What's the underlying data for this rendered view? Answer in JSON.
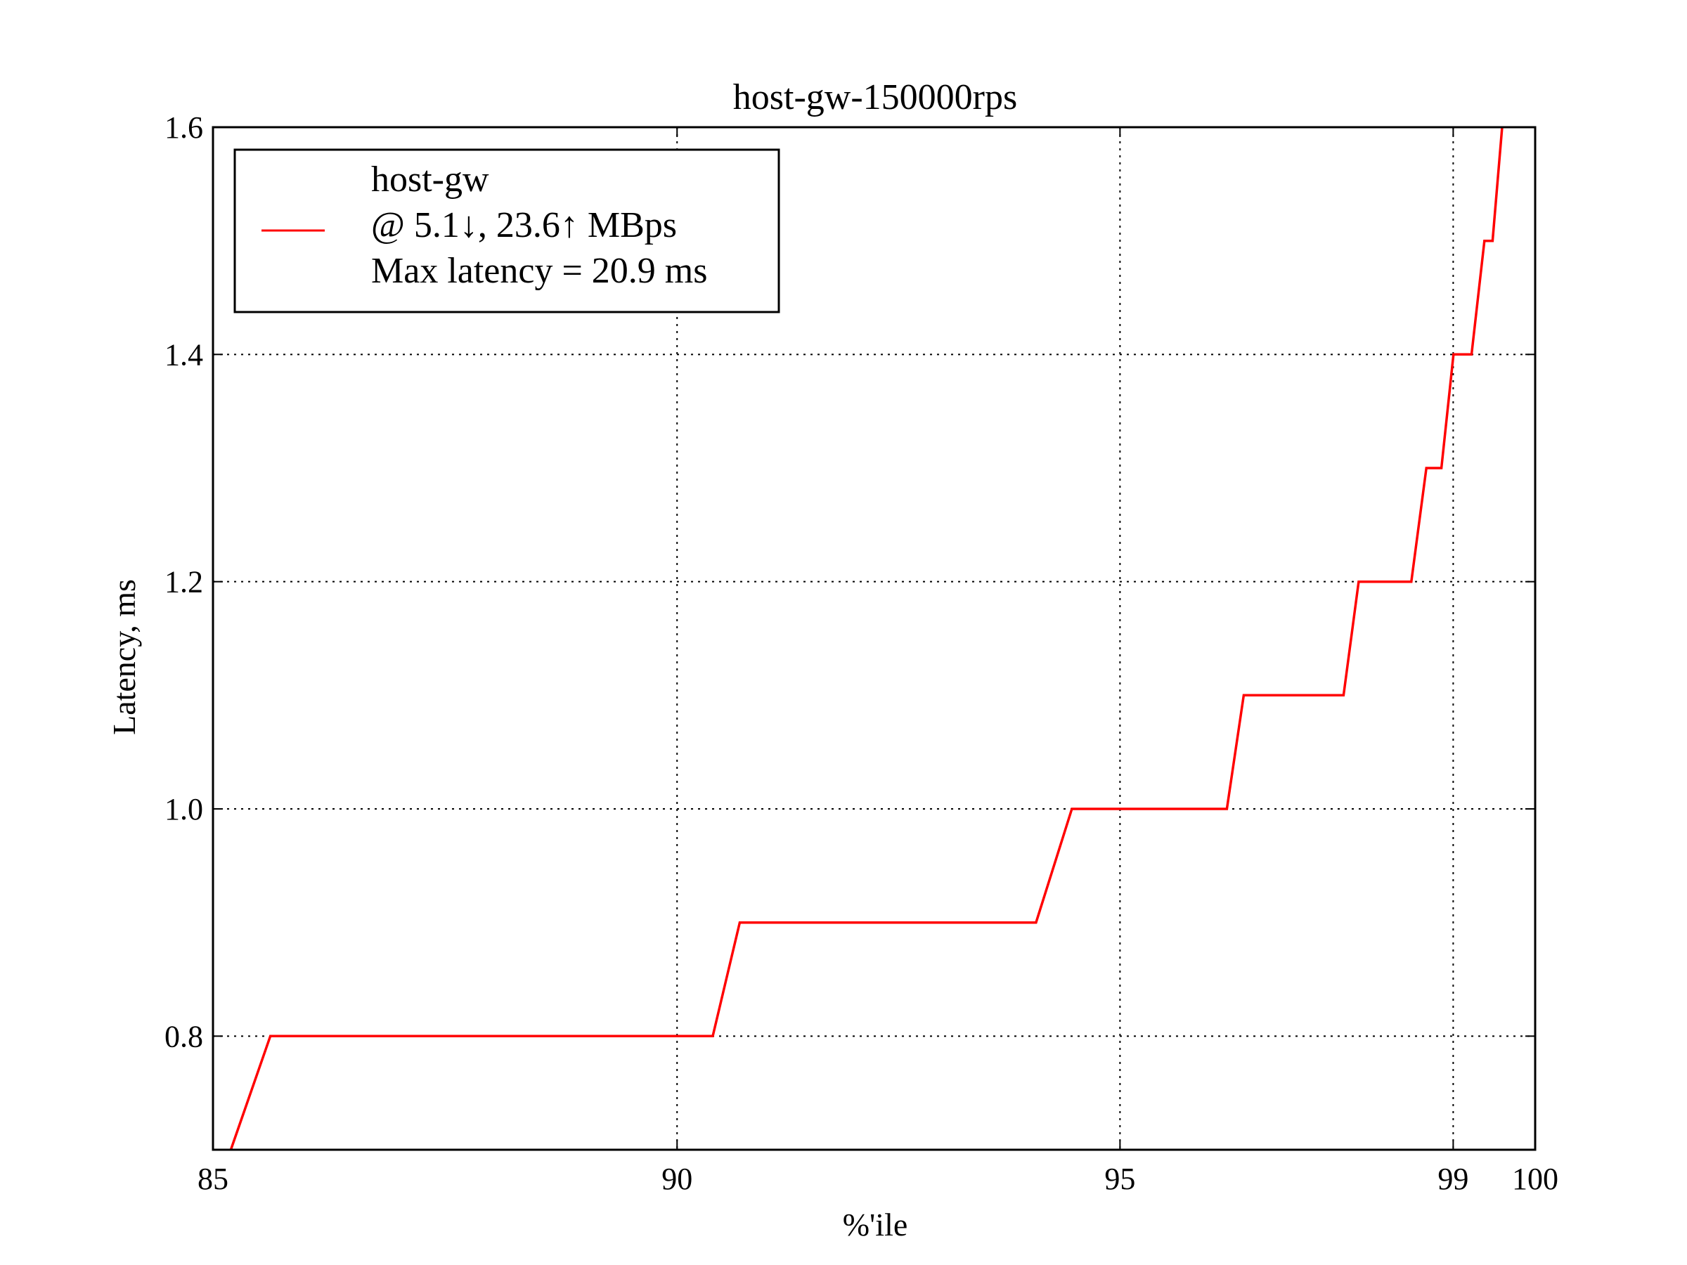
{
  "chart_data": {
    "type": "line",
    "title": "host-gw-150000rps",
    "xlabel": "%'ile",
    "ylabel": "Latency, ms",
    "xlim": [
      0,
      1
    ],
    "ylim": [
      0.7,
      1.6
    ],
    "x_scale": "nines (90 and 99 tick spacing; 100 at right edge)",
    "x_ticks": [
      {
        "pos": 0.0,
        "label": "85"
      },
      {
        "pos": 0.351,
        "label": "90"
      },
      {
        "pos": 0.686,
        "label": "95"
      },
      {
        "pos": 0.938,
        "label": "99"
      },
      {
        "pos": 1.0,
        "label": "100"
      }
    ],
    "y_ticks": [
      {
        "value": 1.6,
        "label": "1.6"
      },
      {
        "value": 1.4,
        "label": "1.4"
      },
      {
        "value": 1.2,
        "label": "1.2"
      },
      {
        "value": 1.0,
        "label": "1.0"
      },
      {
        "value": 0.8,
        "label": "0.8"
      }
    ],
    "grid": true,
    "legend_position": "top-left",
    "legend_lines": [
      "host-gw",
      "@ 5.1↓, 23.6↑ MBps",
      "Max latency = 20.9 ms"
    ],
    "series": [
      {
        "name": "host-gw",
        "color": "#ff0000",
        "points": [
          {
            "x": 0.0135,
            "y": 0.7
          },
          {
            "x": 0.0434,
            "y": 0.8
          },
          {
            "x": 0.378,
            "y": 0.8
          },
          {
            "x": 0.3984,
            "y": 0.9
          },
          {
            "x": 0.6225,
            "y": 0.9
          },
          {
            "x": 0.6496,
            "y": 1.0
          },
          {
            "x": 0.7668,
            "y": 1.0
          },
          {
            "x": 0.7796,
            "y": 1.1
          },
          {
            "x": 0.8551,
            "y": 1.1
          },
          {
            "x": 0.8665,
            "y": 1.2
          },
          {
            "x": 0.9063,
            "y": 1.2
          },
          {
            "x": 0.9177,
            "y": 1.3
          },
          {
            "x": 0.9291,
            "y": 1.3
          },
          {
            "x": 0.9382,
            "y": 1.4
          },
          {
            "x": 0.9519,
            "y": 1.4
          },
          {
            "x": 0.9616,
            "y": 1.5
          },
          {
            "x": 0.9678,
            "y": 1.5
          },
          {
            "x": 0.975,
            "y": 1.6
          }
        ]
      }
    ]
  }
}
